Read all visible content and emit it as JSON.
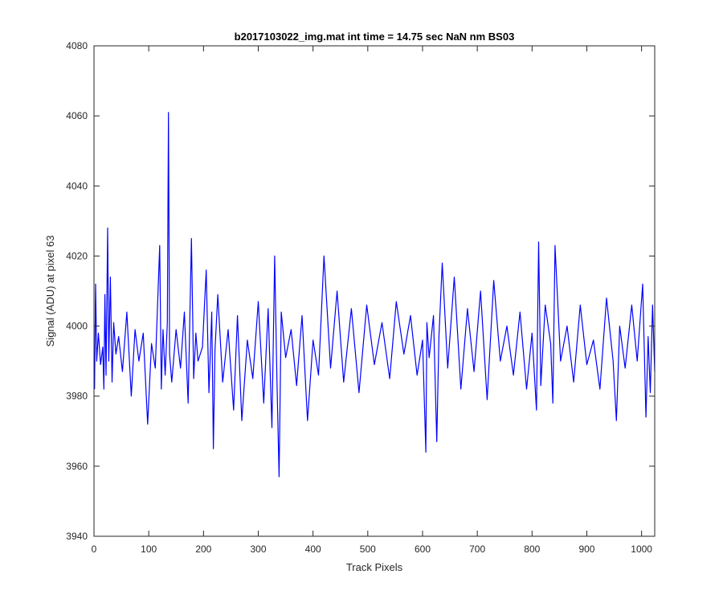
{
  "chart_data": {
    "type": "line",
    "title": "b2017103022_img.mat int time = 14.75 sec  NaN nm BS03",
    "xlabel": "Track Pixels",
    "ylabel": "Signal (ADU) at pixel 63",
    "xlim": [
      0,
      1024
    ],
    "ylim": [
      3940,
      4080
    ],
    "xticks": [
      "0",
      "100",
      "200",
      "300",
      "400",
      "500",
      "600",
      "700",
      "800",
      "900",
      "1000"
    ],
    "yticks": [
      "3940",
      "3960",
      "3980",
      "4000",
      "4020",
      "4040",
      "4060",
      "4080"
    ],
    "grid": false,
    "legend": "none",
    "series": [
      {
        "color": "#0000ff",
        "x": [
          1,
          3,
          5,
          8,
          12,
          16,
          18,
          20,
          22,
          25,
          27,
          30,
          33,
          36,
          40,
          45,
          52,
          60,
          68,
          75,
          82,
          90,
          98,
          105,
          112,
          120,
          123,
          126,
          130,
          134,
          136,
          138,
          142,
          150,
          158,
          165,
          172,
          178,
          182,
          186,
          190,
          198,
          205,
          210,
          215,
          218,
          221,
          226,
          235,
          245,
          255,
          262,
          270,
          280,
          290,
          300,
          310,
          318,
          325,
          330,
          334,
          338,
          342,
          350,
          360,
          370,
          380,
          390,
          400,
          410,
          420,
          432,
          444,
          456,
          470,
          484,
          498,
          512,
          526,
          540,
          552,
          566,
          578,
          590,
          600,
          606,
          608,
          612,
          620,
          626,
          630,
          636,
          646,
          658,
          670,
          682,
          694,
          706,
          718,
          730,
          742,
          754,
          766,
          778,
          790,
          800,
          808,
          812,
          816,
          824,
          834,
          838,
          842,
          852,
          864,
          876,
          888,
          900,
          912,
          924,
          936,
          948,
          954,
          960,
          970,
          982,
          992,
          1002,
          1008,
          1012,
          1016,
          1020,
          1024
        ],
        "y": [
          3982,
          4012,
          3990,
          3998,
          3989,
          3994,
          3982,
          4009,
          3986,
          4028,
          3990,
          4014,
          3984,
          4001,
          3992,
          3997,
          3987,
          4004,
          3980,
          3999,
          3990,
          3998,
          3972,
          3995,
          3988,
          4023,
          3982,
          3999,
          3986,
          4001,
          4061,
          3992,
          3984,
          3999,
          3988,
          4004,
          3978,
          4025,
          3985,
          3998,
          3990,
          3994,
          4016,
          3981,
          4004,
          3965,
          3993,
          4009,
          3984,
          3999,
          3976,
          4003,
          3973,
          3996,
          3985,
          4007,
          3978,
          4005,
          3971,
          4020,
          3985,
          3957,
          4004,
          3991,
          3999,
          3983,
          4003,
          3973,
          3996,
          3986,
          4020,
          3988,
          4010,
          3984,
          4005,
          3981,
          4006,
          3989,
          4001,
          3985,
          4007,
          3992,
          4003,
          3986,
          3996,
          3964,
          4001,
          3991,
          4003,
          3967,
          3997,
          4018,
          3988,
          4014,
          3982,
          4005,
          3987,
          4010,
          3979,
          4013,
          3990,
          4000,
          3986,
          4004,
          3982,
          3998,
          3976,
          4024,
          3983,
          4006,
          3995,
          3978,
          4023,
          3990,
          4000,
          3984,
          4006,
          3989,
          3996,
          3982,
          4008,
          3990,
          3973,
          4000,
          3988,
          4006,
          3990,
          4012,
          3974,
          3997,
          3981,
          4006,
          3987
        ]
      }
    ]
  }
}
